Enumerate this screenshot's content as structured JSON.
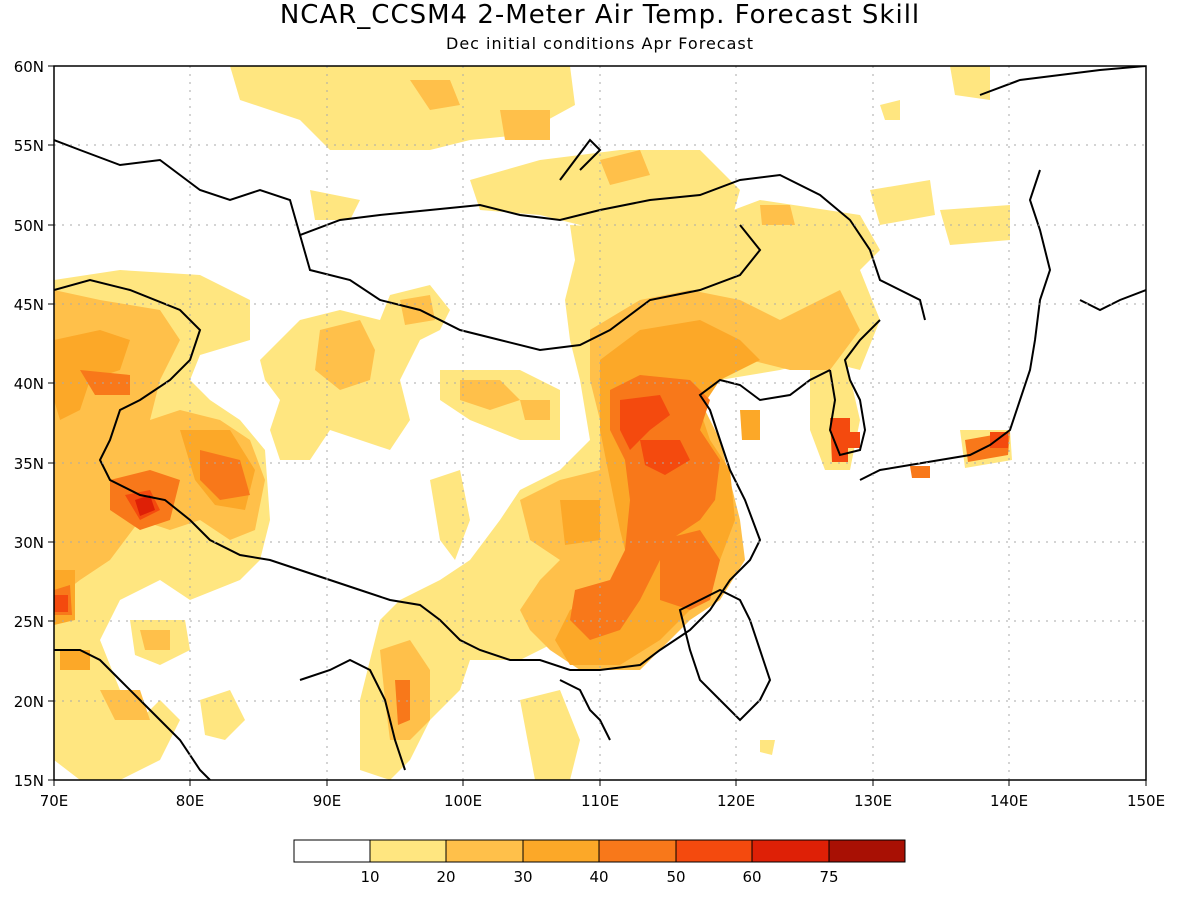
{
  "title": "NCAR_CCSM4 2-Meter Air Temp. Forecast Skill",
  "subtitle": "Dec initial conditions  Apr Forecast",
  "map": {
    "lon_range": [
      70,
      150
    ],
    "lat_range": [
      15,
      60
    ],
    "lon_ticks": [
      "70E",
      "80E",
      "90E",
      "100E",
      "110E",
      "120E",
      "130E",
      "140E",
      "150E"
    ],
    "lat_ticks": [
      "60N",
      "55N",
      "50N",
      "45N",
      "40N",
      "35N",
      "30N",
      "25N",
      "20N",
      "15N"
    ],
    "grid": "dotted"
  },
  "legend": {
    "labels": [
      "10",
      "20",
      "30",
      "40",
      "50",
      "60",
      "75"
    ],
    "colors": [
      "#ffffff",
      "#ffe680",
      "#ffc04a",
      "#fca828",
      "#f8781a",
      "#f44a0e",
      "#de2006",
      "#a81004"
    ]
  }
}
